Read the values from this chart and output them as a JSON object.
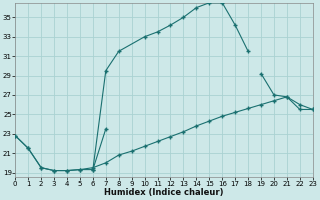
{
  "xlabel": "Humidex (Indice chaleur)",
  "xlim": [
    0,
    23
  ],
  "ylim": [
    18.5,
    36.5
  ],
  "yticks": [
    19,
    21,
    23,
    25,
    27,
    29,
    31,
    33,
    35
  ],
  "xticks": [
    0,
    1,
    2,
    3,
    4,
    5,
    6,
    7,
    8,
    9,
    10,
    11,
    12,
    13,
    14,
    15,
    16,
    17,
    18,
    19,
    20,
    21,
    22,
    23
  ],
  "bg_color": "#cde8e8",
  "grid_color": "#aad2d2",
  "line_color": "#1a7070",
  "curve1_x": [
    0,
    1,
    2,
    3,
    4,
    5,
    6,
    7,
    8,
    10,
    11,
    12,
    13,
    14,
    15,
    16,
    17,
    18
  ],
  "curve1_y": [
    22.8,
    21.5,
    19.5,
    19.2,
    19.2,
    19.3,
    19.3,
    29.5,
    31.5,
    33.0,
    33.5,
    34.2,
    35.0,
    36.0,
    36.5,
    36.5,
    34.2,
    31.5
  ],
  "curve2_x": [
    0,
    1,
    2,
    3,
    4,
    5,
    6,
    7,
    8,
    9,
    10,
    11,
    12,
    13,
    14,
    15,
    16,
    17,
    18,
    19,
    20,
    21,
    22,
    23
  ],
  "curve2_y": [
    22.8,
    21.5,
    19.5,
    19.2,
    19.2,
    19.3,
    19.5,
    20.0,
    20.8,
    21.2,
    21.7,
    22.2,
    22.7,
    23.2,
    23.8,
    24.3,
    24.8,
    25.2,
    25.6,
    26.0,
    26.4,
    26.8,
    25.5,
    25.5
  ],
  "curve3_x": [
    6,
    7,
    19,
    20,
    21,
    22,
    23
  ],
  "curve3_y": [
    19.3,
    23.5,
    29.2,
    27.0,
    26.8,
    26.0,
    25.5
  ]
}
